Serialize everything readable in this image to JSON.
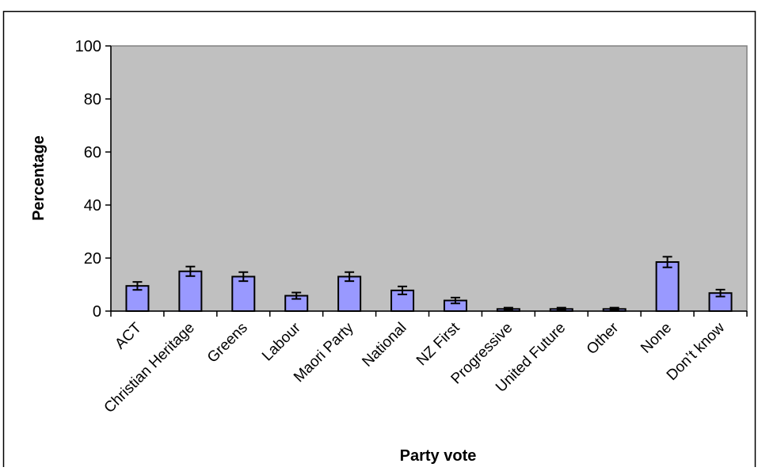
{
  "chart_data": {
    "type": "bar",
    "xlabel": "Party vote",
    "ylabel": "Percentage",
    "ylim": [
      0,
      100
    ],
    "yticks": [
      0,
      20,
      40,
      60,
      80,
      100
    ],
    "grid": false,
    "legend": "none",
    "categories": [
      "ACT",
      "Christian Heritage",
      "Greens",
      "Labour",
      "Maori Party",
      "National",
      "NZ First",
      "Progressive",
      "United Future",
      "Other",
      "None",
      "Don’t know"
    ],
    "values": [
      9.5,
      15,
      13,
      5.8,
      13,
      7.8,
      4,
      0.8,
      0.8,
      0.8,
      18.5,
      6.8
    ],
    "error": [
      1.5,
      1.8,
      1.7,
      1.2,
      1.7,
      1.5,
      1.1,
      0.5,
      0.5,
      0.5,
      2.0,
      1.3
    ],
    "colors": {
      "bar": "#9999ff",
      "plot_background": "#c0c0c0",
      "outline": "#000000"
    }
  }
}
